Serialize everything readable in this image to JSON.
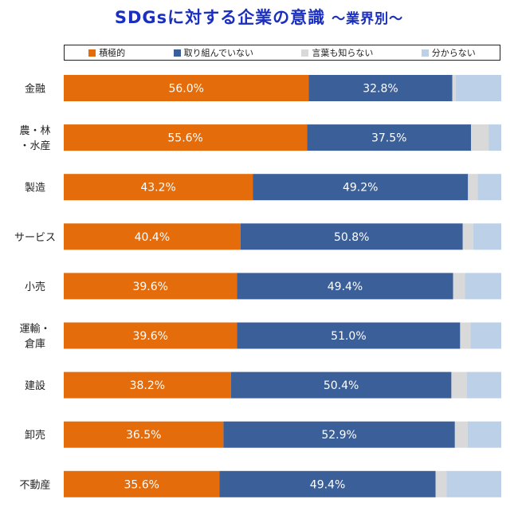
{
  "title": "SDGsに対する企業の意識",
  "subtitle": "～業界別～",
  "legend": [
    "積極的",
    "取り組んでいない",
    "言葉も知らない",
    "分からない"
  ],
  "colors": [
    "#e46c0a",
    "#3b5f98",
    "#d9d9d9",
    "#bcd0e8"
  ],
  "chart_data": {
    "type": "bar",
    "orientation": "horizontal",
    "stacked": true,
    "percent_scale": [
      0,
      100
    ],
    "categories": [
      [
        "金融"
      ],
      [
        "農・林",
        "・水産"
      ],
      [
        "製造"
      ],
      [
        "サービス"
      ],
      [
        "小売"
      ],
      [
        "運輸・",
        "倉庫"
      ],
      [
        "建設"
      ],
      [
        "卸売"
      ],
      [
        "不動産"
      ]
    ],
    "series": [
      {
        "name": "積極的",
        "values": [
          56.0,
          55.6,
          43.2,
          40.4,
          39.6,
          39.6,
          38.2,
          36.5,
          35.6
        ],
        "labeled": true
      },
      {
        "name": "取り組んでいない",
        "values": [
          32.8,
          37.5,
          49.2,
          50.8,
          49.4,
          51.0,
          50.4,
          52.9,
          49.4
        ],
        "labeled": true
      },
      {
        "name": "言葉も知らない",
        "values": [
          0.8,
          4.0,
          2.2,
          2.4,
          2.7,
          2.4,
          3.5,
          2.9,
          2.5
        ],
        "labeled": false
      },
      {
        "name": "分からない",
        "values": [
          10.4,
          2.9,
          5.4,
          6.4,
          8.3,
          7.0,
          7.9,
          7.7,
          12.5
        ],
        "labeled": false
      }
    ],
    "value_suffix": "%"
  }
}
